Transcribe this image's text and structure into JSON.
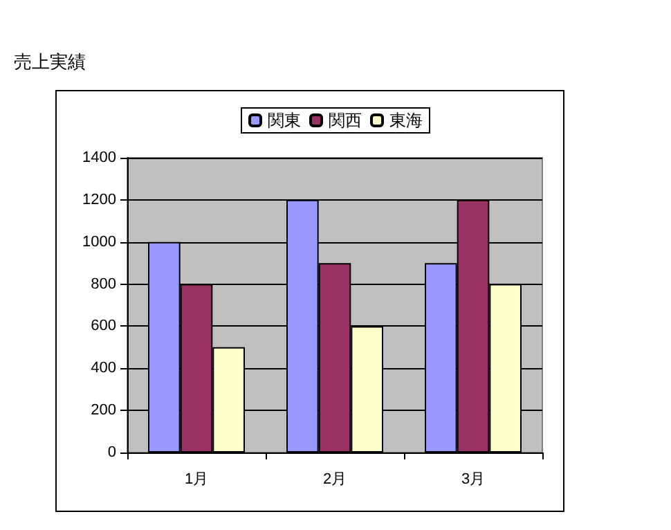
{
  "chart_data": {
    "type": "bar",
    "title": "売上実績",
    "categories": [
      "1月",
      "2月",
      "3月"
    ],
    "series": [
      {
        "name": "関東",
        "color": "#9999ff",
        "values": [
          1000,
          1200,
          900
        ]
      },
      {
        "name": "関西",
        "color": "#993366",
        "values": [
          800,
          900,
          1200
        ]
      },
      {
        "name": "東海",
        "color": "#ffffcc",
        "values": [
          500,
          600,
          800
        ]
      }
    ],
    "ylim": [
      0,
      1400
    ],
    "yticks": [
      0,
      200,
      400,
      600,
      800,
      1000,
      1200,
      1400
    ],
    "grid": "y",
    "legend": "top"
  }
}
